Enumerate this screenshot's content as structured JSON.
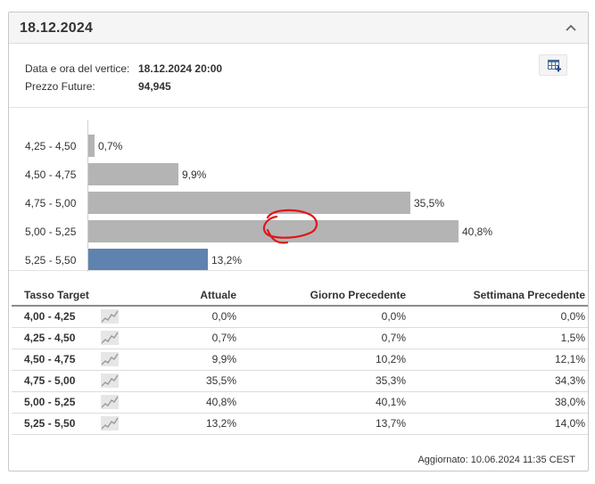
{
  "panel": {
    "title": "18.12.2024"
  },
  "info": {
    "rows": [
      {
        "label": "Data e ora del vertice:",
        "value": "18.12.2024 20:00"
      },
      {
        "label": "Prezzo Future:",
        "value": "94,945"
      }
    ]
  },
  "colors": {
    "bar_default": "#b4b4b4",
    "bar_highlight": "#5e83ae",
    "annotation": "#e0151b"
  },
  "chart_data": {
    "type": "bar",
    "orientation": "horizontal",
    "categories": [
      "4,25 - 4,50",
      "4,50 - 4,75",
      "4,75 - 5,00",
      "5,00 - 5,25",
      "5,25 - 5,50"
    ],
    "values": [
      0.7,
      9.9,
      35.5,
      40.8,
      13.2
    ],
    "value_labels": [
      "0,7%",
      "9,9%",
      "35,5%",
      "40,8%",
      "13,2%"
    ],
    "highlighted_category": "5,25 - 5,50",
    "circled_category": "5,00 - 5,25",
    "xlim": [
      0,
      50
    ]
  },
  "table": {
    "headers": [
      "Tasso Target",
      "Attuale",
      "Giorno Precedente",
      "Settimana Precedente"
    ],
    "rows": [
      {
        "target": "4,00 - 4,25",
        "attuale": "0,0%",
        "giorno": "0,0%",
        "settimana": "0,0%"
      },
      {
        "target": "4,25 - 4,50",
        "attuale": "0,7%",
        "giorno": "0,7%",
        "settimana": "1,5%"
      },
      {
        "target": "4,50 - 4,75",
        "attuale": "9,9%",
        "giorno": "10,2%",
        "settimana": "12,1%"
      },
      {
        "target": "4,75 - 5,00",
        "attuale": "35,5%",
        "giorno": "35,3%",
        "settimana": "34,3%"
      },
      {
        "target": "5,00 - 5,25",
        "attuale": "40,8%",
        "giorno": "40,1%",
        "settimana": "38,0%"
      },
      {
        "target": "5,25 - 5,50",
        "attuale": "13,2%",
        "giorno": "13,7%",
        "settimana": "14,0%"
      }
    ]
  },
  "footer": {
    "updated": "Aggiornato: 10.06.2024 11:35 CEST"
  }
}
